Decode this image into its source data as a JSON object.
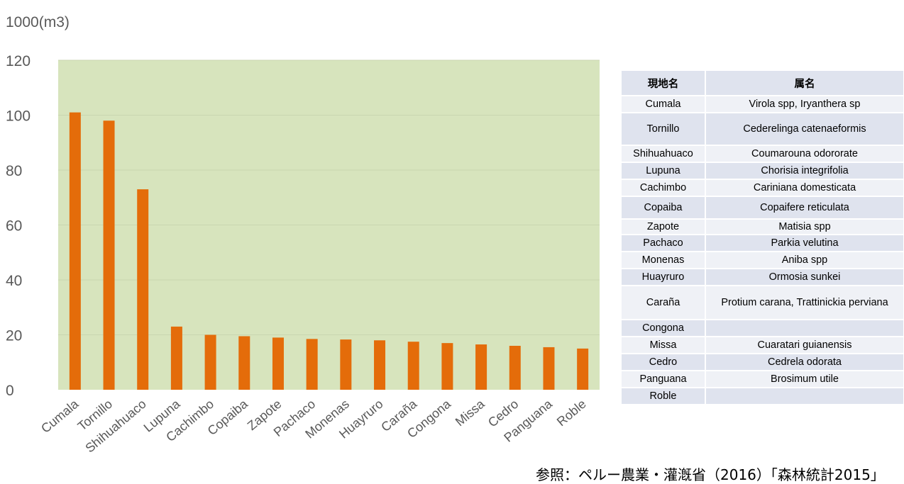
{
  "unit_label": "1000(m3)",
  "chart_data": {
    "type": "bar",
    "categories": [
      "Cumala",
      "Tornillo",
      "Shihuahuaco",
      "Lupuna",
      "Cachimbo",
      "Copaiba",
      "Zapote",
      "Pachaco",
      "Monenas",
      "Huayruro",
      "Caraña",
      "Congona",
      "Missa",
      "Cedro",
      "Panguana",
      "Roble"
    ],
    "values": [
      101,
      98,
      73,
      23,
      20,
      19.5,
      19,
      18.5,
      18.3,
      18,
      17.5,
      17,
      16.5,
      16,
      15.5,
      15
    ],
    "title": "",
    "xlabel": "",
    "ylabel": "1000(m3)",
    "ylim": [
      0,
      120
    ],
    "yticks": [
      "0",
      "20",
      "40",
      "60",
      "80",
      "100",
      "120"
    ],
    "grid": true,
    "colors": {
      "bar": "#e46c0a",
      "plot_bg": "#d7e4bd",
      "gridline": "#c9d6b0"
    }
  },
  "table": {
    "headers": [
      "現地名",
      "属名"
    ],
    "rows": [
      {
        "local": "Cumala",
        "genus": "Virola spp, Iryanthera sp"
      },
      {
        "local": "Tornillo",
        "genus": "Cederelinga catenaeformis"
      },
      {
        "local": "Shihuahuaco",
        "genus": "Coumarouna odororate"
      },
      {
        "local": "Lupuna",
        "genus": "Chorisia integrifolia"
      },
      {
        "local": "Cachimbo",
        "genus": "Cariniana domesticata"
      },
      {
        "local": "Copaiba",
        "genus": "Copaifere reticulata"
      },
      {
        "local": "Zapote",
        "genus": "Matisia spp"
      },
      {
        "local": "Pachaco",
        "genus": "Parkia velutina"
      },
      {
        "local": "Monenas",
        "genus": "Aniba spp"
      },
      {
        "local": "Huayruro",
        "genus": "Ormosia sunkei"
      },
      {
        "local": "Caraña",
        "genus": "Protium carana, Trattinickia perviana"
      },
      {
        "local": "Congona",
        "genus": ""
      },
      {
        "local": "Missa",
        "genus": "Cuaratari guianensis"
      },
      {
        "local": "Cedro",
        "genus": "Cedrela odorata"
      },
      {
        "local": "Panguana",
        "genus": "Brosimum utile"
      },
      {
        "local": "Roble",
        "genus": ""
      }
    ]
  },
  "source_note": "参照：ペルー農業・灌漑省（2016）「森林統計2015」"
}
